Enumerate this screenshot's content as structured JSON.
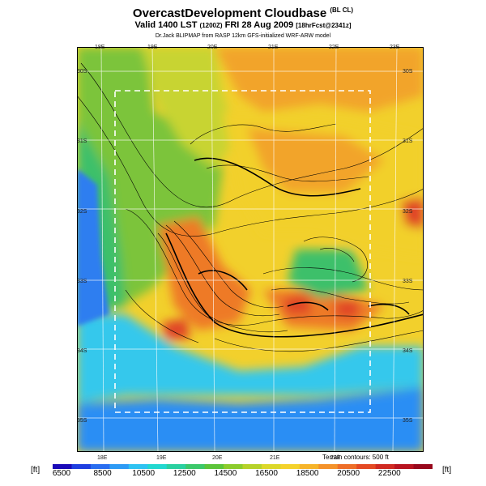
{
  "header": {
    "title": "OvercastDevelopment Cloudbase",
    "title_note": "(BL CL)",
    "valid_line": "Valid 1400 LST",
    "valid_utc": "(1200Z)",
    "valid_date": "FRI 28 Aug 2009",
    "forecast_note": "[18hrFcst@2341z]",
    "credit": "Dr.Jack BLIPMAP from RASP 12km GFS-initialized WRF-ARW model"
  },
  "axes": {
    "top_lon": [
      "18E",
      "19E",
      "20E",
      "21E",
      "22E",
      "23E"
    ],
    "bottom_lon": [
      "18E",
      "19E",
      "20E",
      "21E",
      "22E"
    ],
    "left_lat": [
      "30S",
      "31S",
      "32S",
      "33S",
      "34S",
      "35S"
    ],
    "right_lat": [
      "30S",
      "31S",
      "32S",
      "33S",
      "34S",
      "35S"
    ]
  },
  "terrain_note": "Terrain contours: 500 ft",
  "colorbar": {
    "unit_left": "[ft]",
    "unit_right": "[ft]",
    "labels": [
      "6500",
      "8500",
      "10500",
      "12500",
      "14500",
      "16500",
      "18500",
      "20500",
      "22500"
    ],
    "colors": [
      "#1a0ab8",
      "#1f3fe0",
      "#2a6ef0",
      "#2e9bf5",
      "#2ec3f2",
      "#22d8d0",
      "#2ad0a0",
      "#3cc86a",
      "#5cc43a",
      "#8ccc2c",
      "#b6d22a",
      "#dcd82a",
      "#f4d22c",
      "#f6b42a",
      "#f4922a",
      "#ee6e28",
      "#e44a24",
      "#d02a22",
      "#b81420",
      "#98081c"
    ]
  },
  "map_colors": {
    "ocean": "#2a8ef4",
    "ocean_deep": "#2f7ef0",
    "coast_cyan": "#36c8ec",
    "low_green": "#3ec06a",
    "mid_green": "#7cc43a",
    "yellow_green": "#c8d430",
    "yellow": "#f2d02c",
    "orange": "#f2a42a",
    "dark_orange": "#ee7a28",
    "red": "#e04426"
  }
}
